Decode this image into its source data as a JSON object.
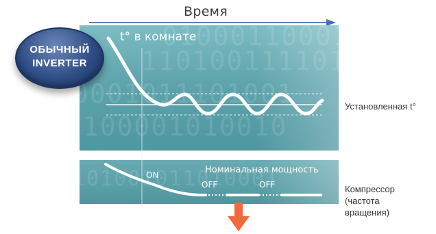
{
  "header": {
    "time_label": "Время"
  },
  "badge": {
    "line1": "ОБЫЧНЫЙ",
    "line2": "INVERTER"
  },
  "room_chart": {
    "title": "t° в комнате",
    "setpoint_label": "Установленная t°"
  },
  "compressor_chart": {
    "nominal_label": "Номинальная мощность",
    "on_label": "ON",
    "off_label_1": "OFF",
    "off_label_2": "OFF",
    "compressor_label_line1": "Компрессор",
    "compressor_label_line2": "(частота",
    "compressor_label_line3": "вращения)"
  },
  "colors": {
    "teal_panel": "#5fa4ad",
    "time_arrow": "#3f6fae",
    "badge_blue": "#2f4d86",
    "down_arrow": "#f06a3c",
    "curve": "#ffffff"
  }
}
